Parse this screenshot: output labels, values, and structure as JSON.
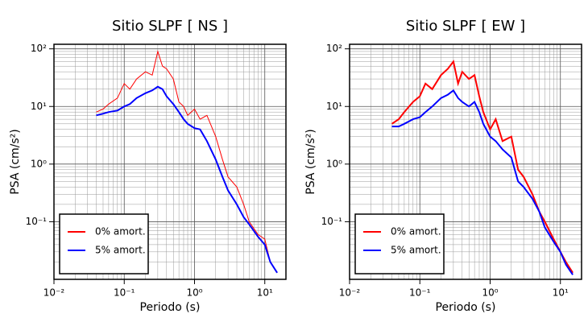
{
  "chart_data": [
    {
      "type": "line",
      "title": "Sitio SLPF [ NS ]",
      "x_label": "Periodo (s)",
      "y_label": "PSA (cm/s²)",
      "xscale": "log",
      "yscale": "log",
      "grid": true,
      "legend": "lower left",
      "xlim": [
        0.01,
        20
      ],
      "ylim": [
        0.01,
        120
      ],
      "xticks": [
        {
          "value": 0.01,
          "label": "10⁻²"
        },
        {
          "value": 0.1,
          "label": "10⁻¹"
        },
        {
          "value": 1,
          "label": "10⁰"
        },
        {
          "value": 10,
          "label": "10¹"
        }
      ],
      "yticks": [
        {
          "value": 0.1,
          "label": "10⁻¹"
        },
        {
          "value": 1,
          "label": "10⁰"
        },
        {
          "value": 10,
          "label": "10¹"
        },
        {
          "value": 100,
          "label": "10²"
        }
      ],
      "x": [
        0.04,
        0.05,
        0.06,
        0.08,
        0.1,
        0.12,
        0.15,
        0.2,
        0.25,
        0.3,
        0.35,
        0.4,
        0.5,
        0.6,
        0.7,
        0.8,
        1.0,
        1.2,
        1.5,
        2,
        2.5,
        3,
        4,
        5,
        6,
        8,
        10,
        12,
        15
      ],
      "series": [
        {
          "name": "0% amort.",
          "color": "#ff0000",
          "width": 1,
          "values": [
            8,
            9,
            11,
            14,
            25,
            20,
            30,
            40,
            35,
            90,
            50,
            45,
            30,
            12,
            10,
            7,
            9,
            6,
            7,
            3,
            1.2,
            0.6,
            0.4,
            0.2,
            0.1,
            0.06,
            0.05,
            0.02,
            0.013
          ]
        },
        {
          "name": "5% amort.",
          "color": "#0000ff",
          "width": 2,
          "values": [
            7,
            7.5,
            8,
            8.5,
            10,
            11,
            14,
            17,
            19,
            22,
            20,
            15,
            11,
            8,
            6,
            5,
            4.2,
            4,
            2.5,
            1.2,
            0.6,
            0.35,
            0.2,
            0.12,
            0.09,
            0.055,
            0.04,
            0.02,
            0.013
          ]
        }
      ]
    },
    {
      "type": "line",
      "title": "Sitio SLPF [ EW ]",
      "x_label": "Periodo (s)",
      "y_label": "PSA (cm/s²)",
      "xscale": "log",
      "yscale": "log",
      "grid": true,
      "legend": "lower left",
      "xlim": [
        0.01,
        20
      ],
      "ylim": [
        0.01,
        120
      ],
      "xticks": [
        {
          "value": 0.01,
          "label": "10⁻²"
        },
        {
          "value": 0.1,
          "label": "10⁻¹"
        },
        {
          "value": 1,
          "label": "10⁰"
        },
        {
          "value": 10,
          "label": "10¹"
        }
      ],
      "yticks": [
        {
          "value": 0.1,
          "label": "10⁻¹"
        },
        {
          "value": 1,
          "label": "10⁰"
        },
        {
          "value": 10,
          "label": "10¹"
        },
        {
          "value": 100,
          "label": "10²"
        }
      ],
      "x": [
        0.04,
        0.05,
        0.06,
        0.08,
        0.1,
        0.12,
        0.15,
        0.2,
        0.25,
        0.3,
        0.35,
        0.4,
        0.5,
        0.6,
        0.7,
        0.8,
        1.0,
        1.2,
        1.5,
        2,
        2.5,
        3,
        4,
        5,
        6,
        8,
        10,
        12,
        15
      ],
      "series": [
        {
          "name": "0% amort.",
          "color": "#ff0000",
          "width": 2,
          "values": [
            5,
            6,
            8,
            12,
            15,
            25,
            20,
            35,
            45,
            60,
            25,
            40,
            30,
            35,
            15,
            8,
            4,
            6,
            2.5,
            3,
            0.8,
            0.6,
            0.3,
            0.15,
            0.1,
            0.05,
            0.03,
            0.02,
            0.013
          ]
        },
        {
          "name": "5% amort.",
          "color": "#0000ff",
          "width": 2,
          "values": [
            4.5,
            4.5,
            5,
            6,
            6.5,
            8,
            10,
            14,
            16,
            19,
            14,
            12,
            10,
            12,
            8,
            5,
            3,
            2.5,
            1.8,
            1.3,
            0.5,
            0.4,
            0.25,
            0.15,
            0.08,
            0.045,
            0.03,
            0.018,
            0.012
          ]
        }
      ]
    }
  ]
}
